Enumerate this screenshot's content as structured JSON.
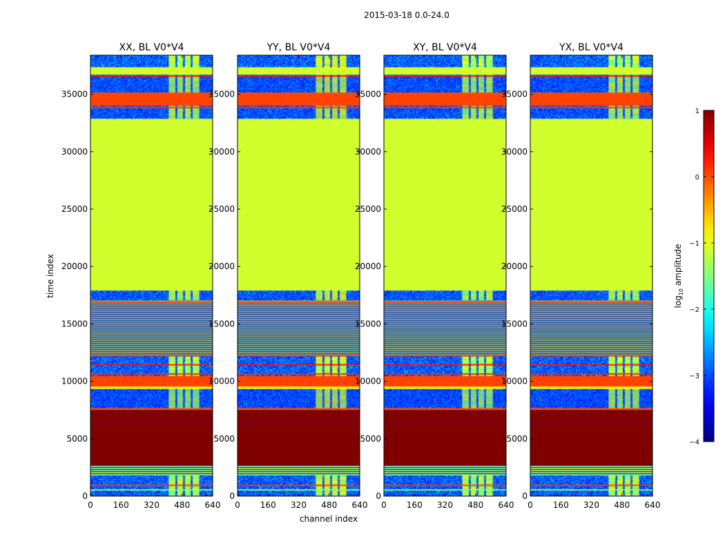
{
  "chart_data": {
    "type": "heatmap",
    "title": "2015-03-18 0.0-24.0",
    "xlabel": "channel index",
    "ylabel": "time index",
    "xlim": [
      0,
      640
    ],
    "ylim": [
      0,
      38400
    ],
    "x_ticks": [
      "0",
      "160",
      "320",
      "480",
      "640"
    ],
    "y_ticks": [
      "0",
      "5000",
      "10000",
      "15000",
      "20000",
      "25000",
      "30000",
      "35000"
    ],
    "x_tick_values": [
      0,
      160,
      320,
      480,
      640
    ],
    "y_tick_values": [
      0,
      5000,
      10000,
      15000,
      20000,
      25000,
      30000,
      35000
    ],
    "panels": [
      {
        "name": "XX",
        "title": "XX, BL V0*V4",
        "variant": 0
      },
      {
        "name": "YY",
        "title": "YY, BL V0*V4",
        "variant": 1
      },
      {
        "name": "XY",
        "title": "XY, BL V0*V4",
        "variant": 2
      },
      {
        "name": "YX",
        "title": "YX, BL V0*V4",
        "variant": 3
      }
    ],
    "colorbar": {
      "label": "log",
      "label_sub": "10",
      "label_rest": " amplitude",
      "range": [
        -4,
        1
      ],
      "ticks": [
        "1",
        "0",
        "−1",
        "−2",
        "−3",
        "−4"
      ],
      "tick_values": [
        1,
        0,
        -1,
        -2,
        -3,
        -4
      ],
      "colormap": "jet"
    },
    "blocks": [
      {
        "t0": 0,
        "t1": 1800,
        "kind": "noise"
      },
      {
        "t0": 1800,
        "t1": 2700,
        "kind": "lines",
        "value": -1.4
      },
      {
        "t0": 2700,
        "t1": 6400,
        "kind": "solid",
        "value": 1.0
      },
      {
        "t0": 6400,
        "t1": 7500,
        "kind": "solid",
        "value": 1.0
      },
      {
        "t0": 7500,
        "t1": 7700,
        "kind": "solid",
        "value": 0.0
      },
      {
        "t0": 7700,
        "t1": 9400,
        "kind": "noise"
      },
      {
        "t0": 9400,
        "t1": 9550,
        "kind": "solid",
        "value": -0.8
      },
      {
        "t0": 9550,
        "t1": 10500,
        "kind": "solid",
        "value": 0.05
      },
      {
        "t0": 10500,
        "t1": 12200,
        "kind": "noise"
      },
      {
        "t0": 12200,
        "t1": 17100,
        "kind": "lines",
        "value": -1.2
      },
      {
        "t0": 17100,
        "t1": 17900,
        "kind": "noise"
      },
      {
        "t0": 17900,
        "t1": 32900,
        "kind": "solid",
        "value": -1.1
      },
      {
        "t0": 32900,
        "t1": 34000,
        "kind": "noise"
      },
      {
        "t0": 34000,
        "t1": 35100,
        "kind": "solid",
        "value": 0.05
      },
      {
        "t0": 35100,
        "t1": 36700,
        "kind": "noise"
      },
      {
        "t0": 36700,
        "t1": 37300,
        "kind": "solid",
        "value": -1.1
      },
      {
        "t0": 37300,
        "t1": 38400,
        "kind": "noise"
      }
    ],
    "rfi_channels": [
      [
        410,
        445
      ],
      [
        455,
        485
      ],
      [
        495,
        525
      ],
      [
        535,
        570
      ]
    ]
  }
}
